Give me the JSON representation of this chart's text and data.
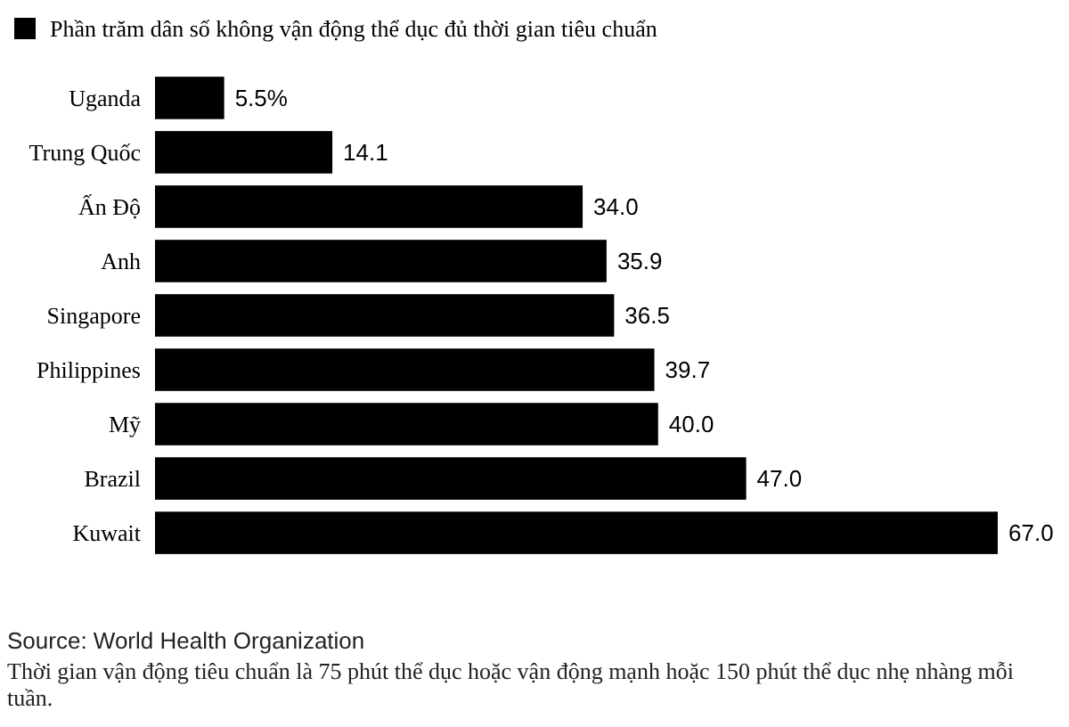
{
  "chart_data": {
    "type": "bar",
    "orientation": "horizontal",
    "categories": [
      "Uganda",
      "Trung Quốc",
      "Ấn Độ",
      "Anh",
      "Singapore",
      "Philippines",
      "Mỹ",
      "Brazil",
      "Kuwait"
    ],
    "series": [
      {
        "name": "Phần trăm dân số không vận động thể dục đủ thời gian tiêu chuẩn",
        "color": "#000000",
        "values": [
          5.5,
          14.1,
          34.0,
          35.9,
          36.5,
          39.7,
          40.0,
          47.0,
          67.0
        ],
        "value_labels": [
          "5.5%",
          "14.1",
          "34.0",
          "35.9",
          "36.5",
          "39.7",
          "40.0",
          "47.0",
          "67.0"
        ]
      }
    ],
    "legend": "top left",
    "grid": false,
    "annotations": [
      "Source: World Health Organization",
      "Thời gian vận động tiêu chuẩn là 75 phút thể dục hoặc vận động mạnh hoặc 150 phút thể dục nhẹ nhàng mỗi tuần."
    ]
  }
}
